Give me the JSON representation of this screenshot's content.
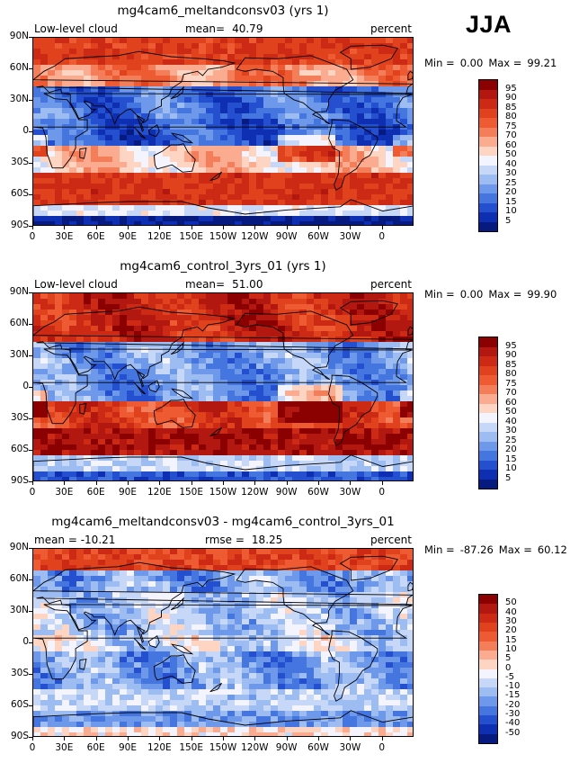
{
  "season": "JJA",
  "panels": [
    {
      "title": "mg4cam6_meltandconsv03 (yrs 1)",
      "left_label": "Low-level cloud",
      "mean_label": "mean=",
      "mean_value": "40.79",
      "units": "percent",
      "min_label": "Min =",
      "min_value": "0.00",
      "max_label": "Max =",
      "max_value": "99.21",
      "colorbar_labels": [
        "95",
        "90",
        "85",
        "80",
        "75",
        "70",
        "60",
        "50",
        "40",
        "30",
        "25",
        "20",
        "15",
        "10",
        "5"
      ],
      "colorbar_colors": [
        "#8b0000",
        "#b2180f",
        "#cc2a14",
        "#e0421e",
        "#ee5a32",
        "#f57e5a",
        "#fbab8f",
        "#fdd5c2",
        "#f4f4ff",
        "#c6d7f8",
        "#9cbcf2",
        "#6e99ea",
        "#4576e0",
        "#2450cf",
        "#0f2fb3",
        "#061a80"
      ],
      "map_style": "exp"
    },
    {
      "title": "mg4cam6_control_3yrs_01 (yrs 1)",
      "left_label": "Low-level cloud",
      "mean_label": "mean=",
      "mean_value": "51.00",
      "units": "percent",
      "min_label": "Min =",
      "min_value": "0.00",
      "max_label": "Max =",
      "max_value": "99.90",
      "colorbar_labels": [
        "95",
        "90",
        "85",
        "80",
        "75",
        "70",
        "60",
        "50",
        "40",
        "30",
        "25",
        "20",
        "15",
        "10",
        "5"
      ],
      "colorbar_colors": [
        "#8b0000",
        "#b2180f",
        "#cc2a14",
        "#e0421e",
        "#ee5a32",
        "#f57e5a",
        "#fbab8f",
        "#fdd5c2",
        "#f4f4ff",
        "#c6d7f8",
        "#9cbcf2",
        "#6e99ea",
        "#4576e0",
        "#2450cf",
        "#0f2fb3",
        "#061a80"
      ],
      "map_style": "ctl"
    },
    {
      "title": "mg4cam6_meltandconsv03 - mg4cam6_control_3yrs_01",
      "left_label": "mean = -10.21",
      "mean_label": "rmse =",
      "mean_value": "18.25",
      "units": "percent",
      "min_label": "Min =",
      "min_value": "-87.26",
      "max_label": "Max =",
      "max_value": "60.12",
      "colorbar_labels": [
        "50",
        "40",
        "30",
        "20",
        "15",
        "10",
        "5",
        "0",
        "-5",
        "-10",
        "-15",
        "-20",
        "-30",
        "-40",
        "-50"
      ],
      "colorbar_colors": [
        "#8b0000",
        "#b2180f",
        "#cc2a14",
        "#e0421e",
        "#ee5a32",
        "#f57e5a",
        "#fbab8f",
        "#fdd5c2",
        "#f4f4ff",
        "#c6d7f8",
        "#9cbcf2",
        "#6e99ea",
        "#4576e0",
        "#2450cf",
        "#0f2fb3",
        "#061a80"
      ],
      "map_style": "diff"
    }
  ],
  "axes": {
    "y_ticks": [
      "90N",
      "60N",
      "30N",
      "0",
      "30S",
      "60S",
      "90S"
    ],
    "x_ticks": [
      "0",
      "30E",
      "60E",
      "90E",
      "120E",
      "150E",
      "150W",
      "120W",
      "90W",
      "60W",
      "30W",
      "0"
    ]
  },
  "chart_data": {
    "type": "heatmap",
    "title": "Low-level cloud, JJA",
    "units": "percent",
    "xlim": [
      0,
      360
    ],
    "ylim": [
      -90,
      90
    ],
    "x_tick_labels": [
      "0",
      "30E",
      "60E",
      "90E",
      "120E",
      "150E",
      "150W",
      "120W",
      "90W",
      "60W",
      "30W",
      "0"
    ],
    "y_tick_labels": [
      "90N",
      "60N",
      "30N",
      "0",
      "30S",
      "60S",
      "90S"
    ],
    "series": [
      {
        "name": "mg4cam6_meltandconsv03 (yrs 1)",
        "mean": 40.79,
        "min": 0.0,
        "max": 99.21,
        "levels": [
          5,
          10,
          15,
          20,
          25,
          30,
          40,
          50,
          60,
          70,
          75,
          80,
          85,
          90,
          95
        ]
      },
      {
        "name": "mg4cam6_control_3yrs_01 (yrs 1)",
        "mean": 51.0,
        "min": 0.0,
        "max": 99.9,
        "levels": [
          5,
          10,
          15,
          20,
          25,
          30,
          40,
          50,
          60,
          70,
          75,
          80,
          85,
          90,
          95
        ]
      },
      {
        "name": "mg4cam6_meltandconsv03 - mg4cam6_control_3yrs_01",
        "mean": -10.21,
        "rmse": 18.25,
        "min": -87.26,
        "max": 60.12,
        "levels": [
          -50,
          -40,
          -30,
          -20,
          -15,
          -10,
          -5,
          0,
          5,
          10,
          15,
          20,
          30,
          40,
          50
        ]
      }
    ]
  }
}
